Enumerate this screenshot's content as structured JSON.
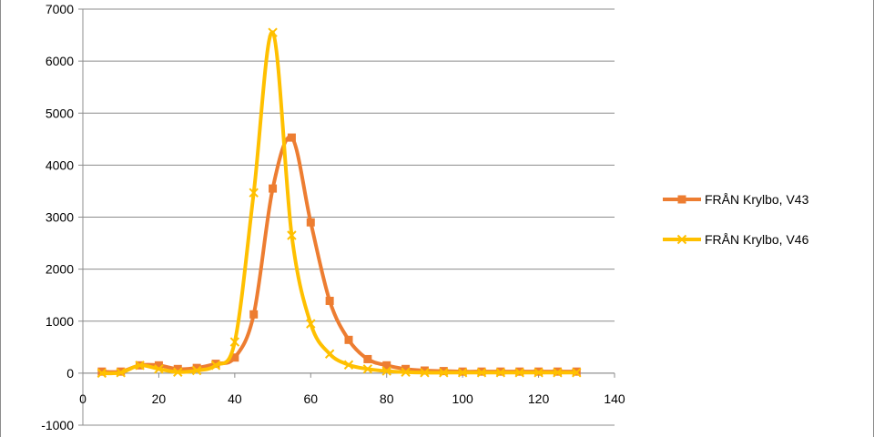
{
  "chart_data": {
    "type": "scatter",
    "title": "",
    "xlabel": "",
    "ylabel": "",
    "xlim": [
      0,
      140
    ],
    "ylim": [
      -1000,
      7000
    ],
    "x_ticks": [
      0,
      20,
      40,
      60,
      80,
      100,
      120,
      140
    ],
    "y_ticks": [
      -1000,
      0,
      1000,
      2000,
      3000,
      4000,
      5000,
      6000,
      7000
    ],
    "x_tick_labels": [
      "0",
      "20",
      "40",
      "60",
      "80",
      "100",
      "120",
      "140"
    ],
    "y_tick_labels": [
      "-1000",
      "0",
      "1000",
      "2000",
      "3000",
      "4000",
      "5000",
      "6000",
      "7000"
    ],
    "grid": "horizontal",
    "smooth_lines": true,
    "legend_position": "right",
    "series": [
      {
        "name": "FRÅN Krylbo, V43",
        "color": "#ed7d31",
        "marker": "square",
        "x": [
          5,
          10,
          15,
          20,
          25,
          30,
          35,
          40,
          45,
          50,
          55,
          60,
          65,
          70,
          75,
          80,
          85,
          90,
          95,
          100,
          105,
          110,
          115,
          120,
          125,
          130
        ],
        "y": [
          30,
          30,
          150,
          150,
          80,
          100,
          180,
          300,
          1130,
          3550,
          4530,
          2900,
          1390,
          640,
          270,
          150,
          80,
          50,
          40,
          30,
          30,
          30,
          30,
          30,
          30,
          30
        ]
      },
      {
        "name": "FRÅN Krylbo, V46",
        "color": "#ffc000",
        "marker": "x",
        "x": [
          5,
          10,
          15,
          20,
          25,
          30,
          35,
          40,
          45,
          50,
          55,
          60,
          65,
          70,
          75,
          80,
          85,
          90,
          95,
          100,
          105,
          110,
          115,
          120,
          125,
          130
        ],
        "y": [
          0,
          10,
          150,
          80,
          20,
          50,
          150,
          600,
          3470,
          6550,
          2650,
          950,
          370,
          160,
          80,
          40,
          20,
          10,
          10,
          10,
          10,
          10,
          10,
          10,
          10,
          10
        ]
      }
    ]
  }
}
